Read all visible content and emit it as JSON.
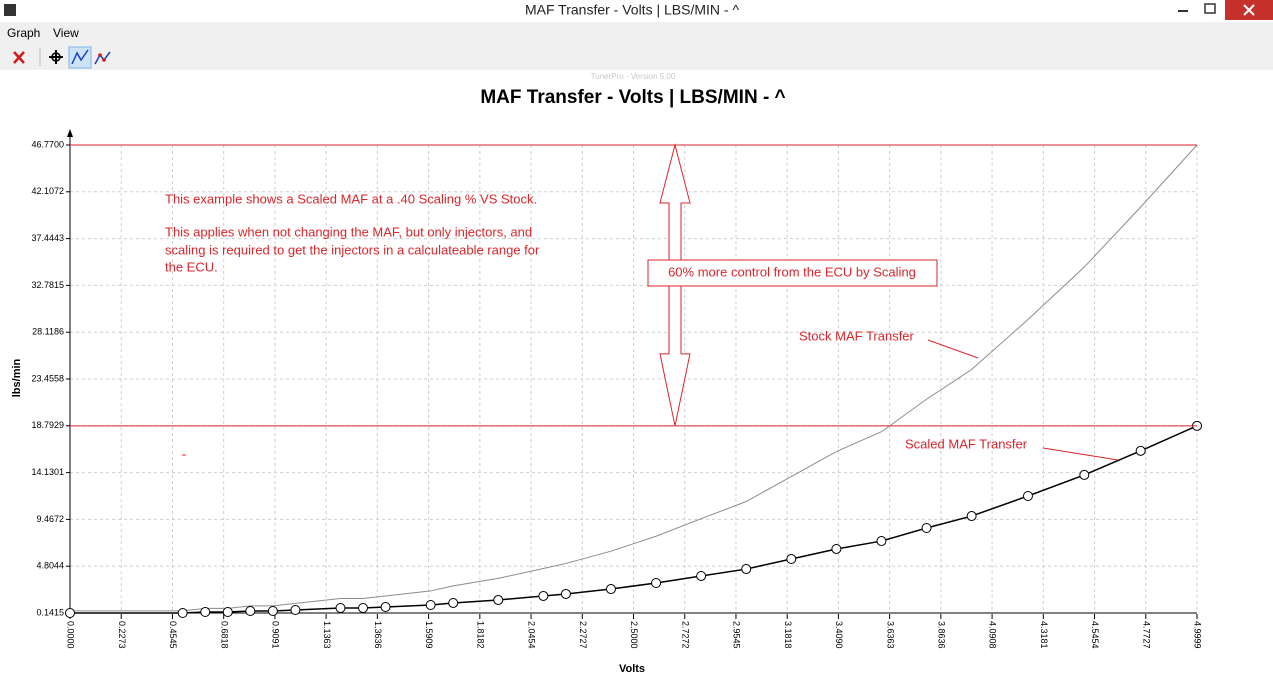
{
  "window": {
    "title": "MAF Transfer - Volts | LBS/MIN - ^",
    "menu": [
      "Graph",
      "View"
    ]
  },
  "chart_data": {
    "type": "line",
    "watermark": "TunerPro - Version 5.00",
    "title": "MAF Transfer - Volts | LBS/MIN - ^",
    "x_label": "Volts",
    "y_label": "lbs/min",
    "x": [
      0,
      0.5,
      0.6,
      0.7,
      0.8,
      0.9,
      1.0,
      1.2,
      1.3,
      1.4,
      1.6,
      1.7,
      1.9,
      2.1,
      2.2,
      2.4,
      2.6,
      2.8,
      3.0,
      3.2,
      3.4,
      3.6,
      3.8,
      4.0,
      4.25,
      4.5,
      4.75,
      4.9999
    ],
    "series": [
      {
        "name": "Stock MAF Transfer",
        "color": "#8c8c8c",
        "markers": false,
        "values": [
          0.35,
          0.35,
          0.6,
          0.6,
          0.85,
          0.85,
          1.1,
          1.59,
          1.59,
          1.84,
          2.34,
          2.84,
          3.59,
          4.58,
          5.08,
          6.3,
          7.79,
          9.54,
          11.25,
          13.74,
          16.23,
          18.2,
          21.44,
          24.4,
          29.38,
          34.61,
          40.59,
          46.77
        ]
      },
      {
        "name": "Scaled MAF Transfer",
        "color": "#000000",
        "markers": true,
        "values": [
          0.14,
          0.14,
          0.24,
          0.24,
          0.34,
          0.34,
          0.44,
          0.64,
          0.64,
          0.74,
          0.94,
          1.14,
          1.44,
          1.84,
          2.04,
          2.53,
          3.13,
          3.83,
          4.52,
          5.52,
          6.52,
          7.31,
          8.61,
          9.8,
          11.8,
          13.9,
          16.3,
          18.79
        ]
      }
    ],
    "xlim": [
      0,
      4.9999
    ],
    "ylim": [
      0.1415,
      46.77
    ],
    "xticks": [
      {
        "value": 0,
        "label": "0.0000"
      },
      {
        "value": 0.2273,
        "label": "0.2273"
      },
      {
        "value": 0.4545,
        "label": "0.4545"
      },
      {
        "value": 0.6818,
        "label": "0.6818"
      },
      {
        "value": 0.9091,
        "label": "0.9091"
      },
      {
        "value": 1.1363,
        "label": "1.1363"
      },
      {
        "value": 1.3636,
        "label": "1.3636"
      },
      {
        "value": 1.5909,
        "label": "1.5909"
      },
      {
        "value": 1.8182,
        "label": "1.8182"
      },
      {
        "value": 2.0454,
        "label": "2.0454"
      },
      {
        "value": 2.2727,
        "label": "2.2727"
      },
      {
        "value": 2.5,
        "label": "2.5000"
      },
      {
        "value": 2.7272,
        "label": "2.7272"
      },
      {
        "value": 2.9545,
        "label": "2.9545"
      },
      {
        "value": 3.1818,
        "label": "3.1818"
      },
      {
        "value": 3.409,
        "label": "3.4090"
      },
      {
        "value": 3.6363,
        "label": "3.6363"
      },
      {
        "value": 3.8636,
        "label": "3.8636"
      },
      {
        "value": 4.0908,
        "label": "4.0908"
      },
      {
        "value": 4.3181,
        "label": "4.3181"
      },
      {
        "value": 4.5454,
        "label": "4.5454"
      },
      {
        "value": 4.7727,
        "label": "4.7727"
      },
      {
        "value": 4.9999,
        "label": "4.9999"
      }
    ],
    "yticks": [
      0.1415,
      4.8044,
      9.4672,
      14.1301,
      18.7929,
      23.4558,
      28.1186,
      32.7815,
      37.4443,
      42.1072,
      {
        "value": 46.77,
        "label": "46.7700"
      }
    ],
    "grid": true,
    "notes": [
      "This example shows a Scaled MAF at a .40 Scaling % VS Stock.",
      "This applies when not changing the MAF, but only injectors, and",
      "scaling is required to get the injectors in a calculateable range for",
      "the ECU."
    ],
    "callout": "60% more control from the ECU by Scaling",
    "annotation_color": "#d9262b"
  }
}
